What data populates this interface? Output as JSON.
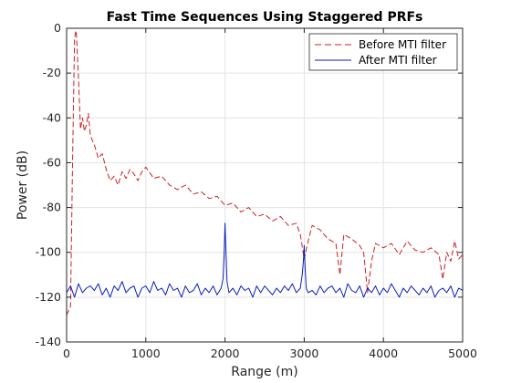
{
  "colors": {
    "before": "#cc1f1f",
    "after": "#0a1fbf",
    "axis": "#262626",
    "grid": "#e3e3e3"
  },
  "chart_data": {
    "type": "line",
    "title": "Fast Time Sequences Using Staggered PRFs",
    "xlabel": "Range (m)",
    "ylabel": "Power (dB)",
    "xlim": [
      0,
      5000
    ],
    "ylim": [
      -140,
      0
    ],
    "xticks": [
      0,
      1000,
      2000,
      3000,
      4000,
      5000
    ],
    "yticks": [
      0,
      -20,
      -40,
      -60,
      -80,
      -100,
      -120,
      -140
    ],
    "grid": true,
    "legend_placement": "top-right",
    "series": [
      {
        "name": "Before MTI filter",
        "style": "dashed",
        "color": "#cc1f1f",
        "x": [
          0,
          25,
          50,
          75,
          100,
          115,
          125,
          150,
          175,
          200,
          225,
          250,
          275,
          300,
          350,
          400,
          450,
          500,
          550,
          600,
          650,
          700,
          750,
          800,
          850,
          900,
          950,
          1000,
          1100,
          1200,
          1300,
          1400,
          1500,
          1600,
          1700,
          1800,
          1900,
          2000,
          2100,
          2200,
          2300,
          2400,
          2500,
          2600,
          2700,
          2800,
          2900,
          2950,
          3000,
          3050,
          3100,
          3200,
          3300,
          3400,
          3450,
          3500,
          3600,
          3700,
          3750,
          3800,
          3850,
          3900,
          4000,
          4100,
          4200,
          4300,
          4400,
          4500,
          4600,
          4700,
          4750,
          4800,
          4850,
          4900,
          4950,
          5000
        ],
        "y": [
          -128,
          -126,
          -124,
          -60,
          -5,
          -1,
          -3,
          -22,
          -45,
          -40,
          -46,
          -43,
          -38,
          -48,
          -52,
          -58,
          -56,
          -63,
          -68,
          -66,
          -70,
          -64,
          -67,
          -63,
          -65,
          -68,
          -64,
          -62,
          -67,
          -66,
          -70,
          -72,
          -70,
          -74,
          -73,
          -76,
          -75,
          -79,
          -78,
          -82,
          -80,
          -84,
          -83,
          -86,
          -84,
          -88,
          -87,
          -92,
          -103,
          -95,
          -88,
          -90,
          -94,
          -96,
          -110,
          -92,
          -94,
          -97,
          -100,
          -118,
          -104,
          -96,
          -98,
          -96,
          -101,
          -95,
          -99,
          -100,
          -98,
          -101,
          -112,
          -100,
          -104,
          -95,
          -103,
          -101
        ]
      },
      {
        "name": "After MTI filter",
        "style": "solid",
        "color": "#0a1fbf",
        "x": [
          0,
          50,
          100,
          150,
          200,
          250,
          300,
          350,
          400,
          450,
          500,
          550,
          600,
          650,
          700,
          750,
          800,
          850,
          900,
          950,
          1000,
          1050,
          1100,
          1150,
          1200,
          1250,
          1300,
          1350,
          1400,
          1450,
          1500,
          1550,
          1600,
          1650,
          1700,
          1750,
          1800,
          1850,
          1900,
          1950,
          1975,
          1990,
          2000,
          2010,
          2025,
          2050,
          2100,
          2150,
          2200,
          2250,
          2300,
          2350,
          2400,
          2450,
          2500,
          2550,
          2600,
          2650,
          2700,
          2750,
          2800,
          2850,
          2900,
          2950,
          2975,
          2990,
          3000,
          3010,
          3025,
          3050,
          3100,
          3150,
          3200,
          3250,
          3300,
          3350,
          3400,
          3450,
          3500,
          3550,
          3600,
          3650,
          3700,
          3750,
          3800,
          3850,
          3900,
          3950,
          4000,
          4050,
          4100,
          4150,
          4200,
          4250,
          4300,
          4350,
          4400,
          4450,
          4500,
          4550,
          4600,
          4650,
          4700,
          4750,
          4800,
          4850,
          4900,
          4950,
          5000
        ],
        "y": [
          -118,
          -115,
          -120,
          -114,
          -118,
          -116,
          -115,
          -117,
          -114,
          -119,
          -116,
          -120,
          -115,
          -117,
          -113,
          -118,
          -116,
          -115,
          -120,
          -116,
          -115,
          -118,
          -113,
          -117,
          -116,
          -119,
          -114,
          -117,
          -116,
          -120,
          -115,
          -118,
          -117,
          -114,
          -119,
          -116,
          -118,
          -115,
          -119,
          -116,
          -112,
          -100,
          -87,
          -98,
          -113,
          -118,
          -116,
          -119,
          -115,
          -117,
          -116,
          -120,
          -115,
          -118,
          -115,
          -117,
          -119,
          -116,
          -118,
          -115,
          -117,
          -114,
          -118,
          -116,
          -110,
          -104,
          -97,
          -106,
          -116,
          -118,
          -117,
          -119,
          -115,
          -118,
          -116,
          -115,
          -118,
          -116,
          -120,
          -114,
          -117,
          -118,
          -115,
          -120,
          -116,
          -118,
          -115,
          -119,
          -116,
          -118,
          -114,
          -117,
          -120,
          -116,
          -118,
          -115,
          -117,
          -119,
          -116,
          -118,
          -115,
          -120,
          -117,
          -116,
          -118,
          -115,
          -120,
          -116,
          -117
        ]
      }
    ]
  }
}
